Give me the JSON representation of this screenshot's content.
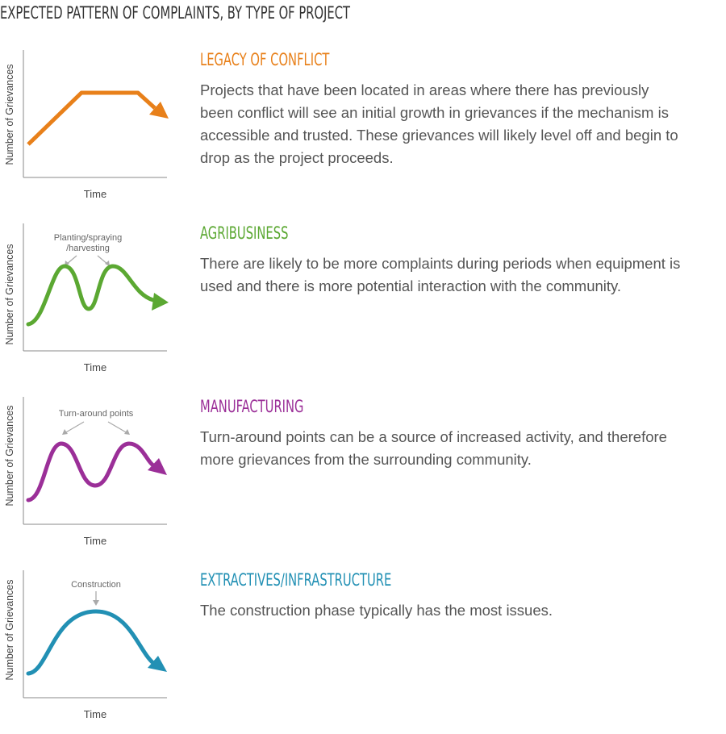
{
  "title": "EXPECTED PATTERN OF COMPLAINTS, BY TYPE OF PROJECT",
  "sections": [
    {
      "heading": "LEGACY OF CONFLICT",
      "color": "#E8801A",
      "description": "Projects that have been located in areas where there has previously been conflict will see an initial growth in grievances if the mechanism is accessible and trusted. These grievances will likely level off and begin to drop as the project proceeds.",
      "chart": {
        "ylabel": "Number of Grievances",
        "xlabel": "Time"
      }
    },
    {
      "heading": "AGRIBUSINESS",
      "color": "#5BA832",
      "description": "There are likely to be more complaints during periods when equipment is used and there is more potential interaction with the community.",
      "chart": {
        "ylabel": "Number of Grievances",
        "xlabel": "Time",
        "annotation_line1": "Planting/spraying",
        "annotation_line2": "/harvesting"
      }
    },
    {
      "heading": "MANUFACTURING",
      "color": "#9B2F98",
      "description": "Turn-around points can be a source of increased activity, and therefore more grievances from the surrounding community.",
      "chart": {
        "ylabel": "Number of Grievances",
        "xlabel": "Time",
        "annotation": "Turn-around points"
      }
    },
    {
      "heading": "EXTRACTIVES/INFRASTRUCTURE",
      "color": "#2290B4",
      "description": "The construction phase typically has the most issues.",
      "chart": {
        "ylabel": "Number of Grievances",
        "xlabel": "Time",
        "annotation": "Construction"
      }
    }
  ]
}
